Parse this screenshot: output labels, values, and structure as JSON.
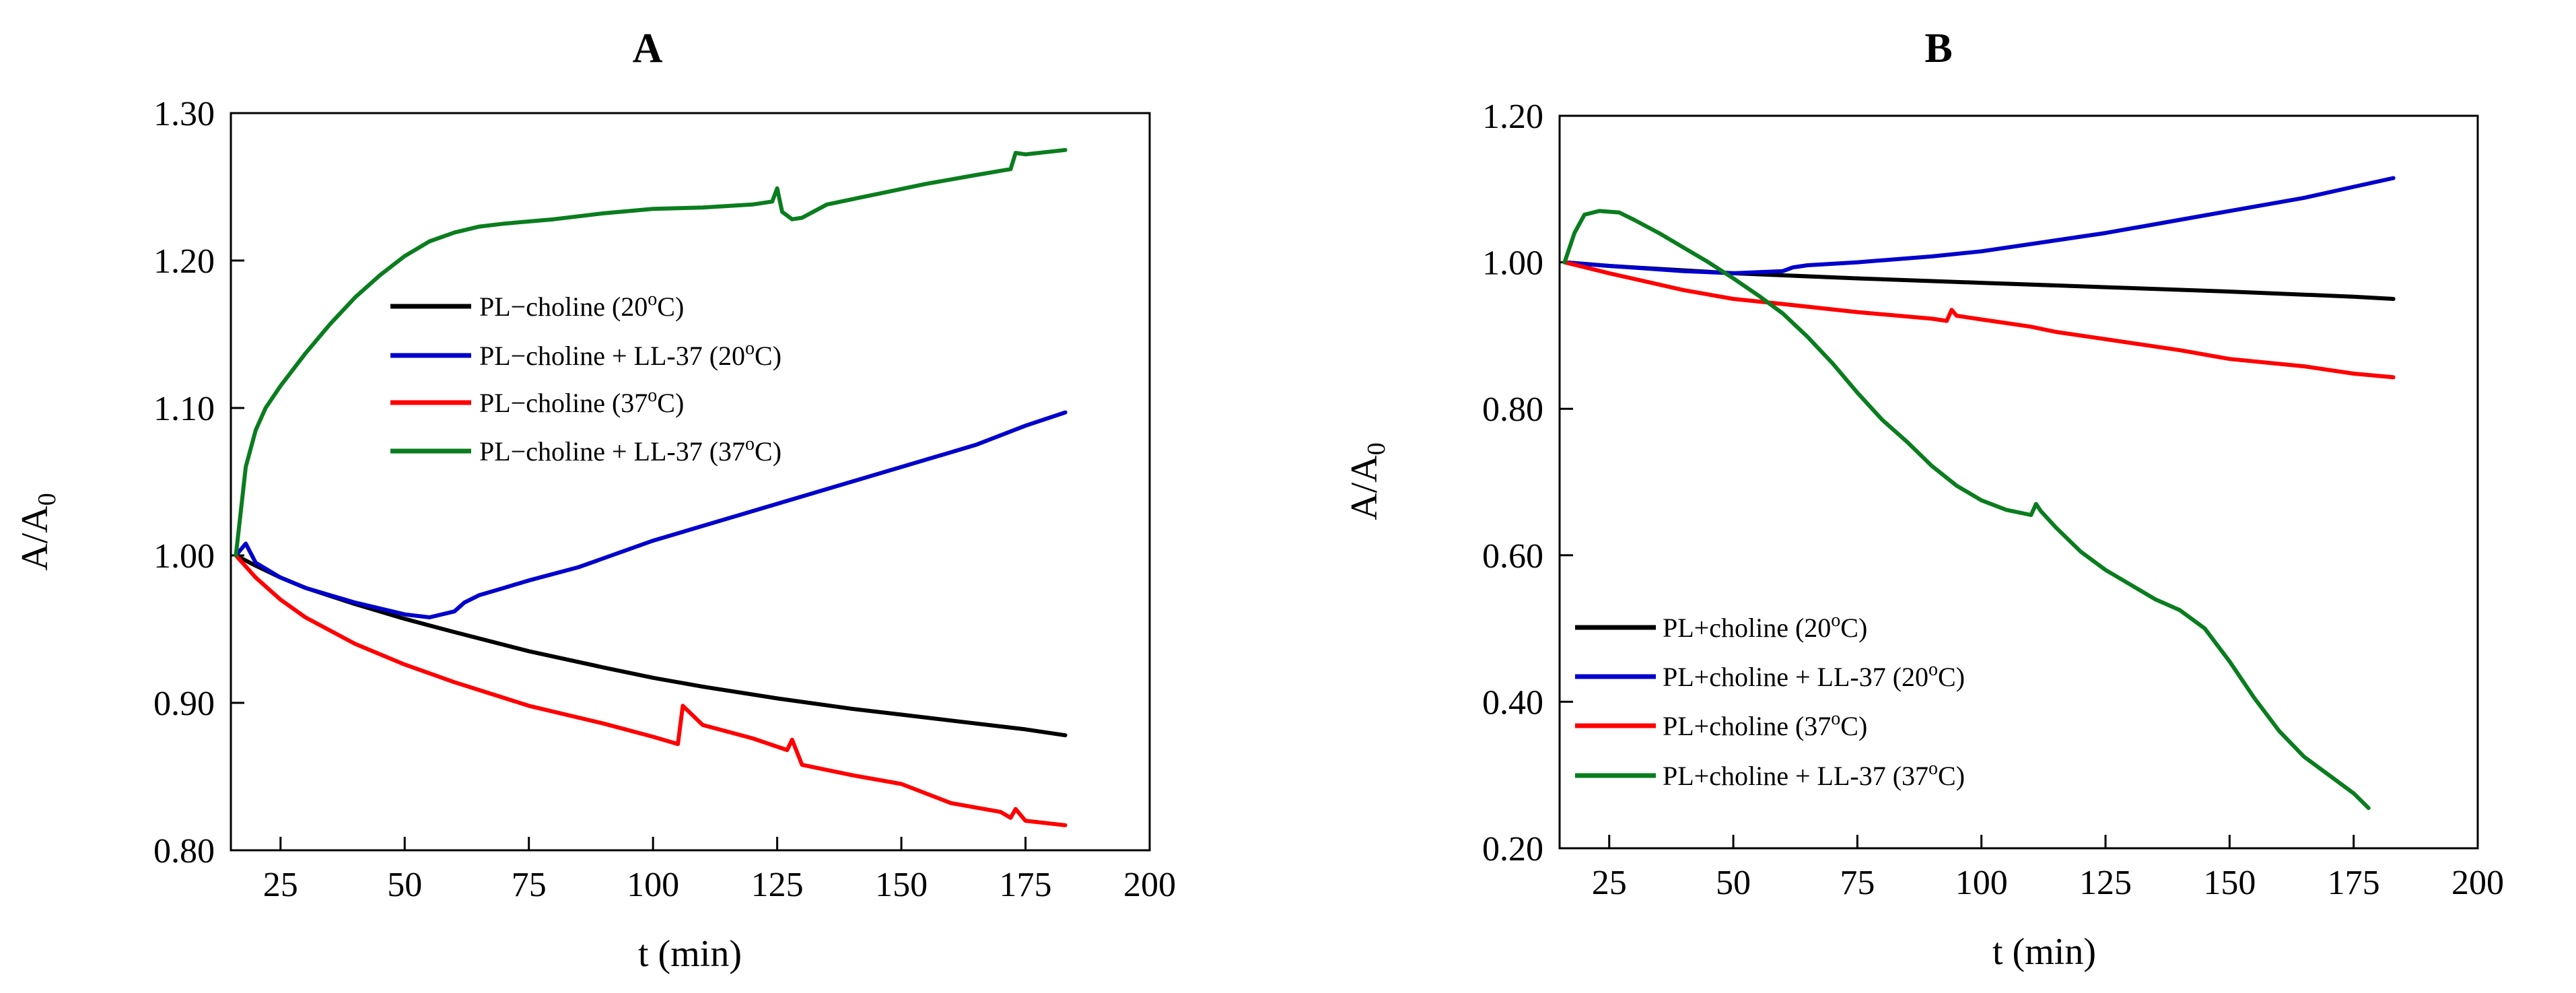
{
  "chart_data": [
    {
      "type": "line",
      "panel_label": "A",
      "xlabel": "t (min)",
      "ylabel": "A/A",
      "ylabel_sub": "0",
      "xlim": [
        15,
        200
      ],
      "ylim": [
        0.8,
        1.3
      ],
      "xticks": [
        25,
        50,
        75,
        100,
        125,
        150,
        175,
        200
      ],
      "xtick_labels": [
        "25",
        "50",
        "75",
        "100",
        "125",
        "150",
        "175",
        "200"
      ],
      "yticks": [
        0.8,
        0.9,
        1.0,
        1.1,
        1.2,
        1.3
      ],
      "ytick_labels": [
        "0.80",
        "0.90",
        "1.00",
        "1.10",
        "1.20",
        "1.30"
      ],
      "legend_position": "center",
      "series": [
        {
          "name": "PL−choline (20°C)",
          "legend_pre": "PL−choline (20",
          "legend_sup": "o",
          "legend_post": "C)",
          "color": "#000000",
          "x": [
            16,
            20,
            25,
            30,
            40,
            50,
            60,
            75,
            90,
            100,
            110,
            125,
            140,
            150,
            160,
            175,
            183
          ],
          "y": [
            1.0,
            0.993,
            0.985,
            0.978,
            0.967,
            0.957,
            0.948,
            0.935,
            0.924,
            0.917,
            0.911,
            0.903,
            0.896,
            0.892,
            0.888,
            0.882,
            0.878
          ]
        },
        {
          "name": "PL−choline + LL-37 (20°C)",
          "legend_pre": "PL−choline + LL-37 (20",
          "legend_sup": "o",
          "legend_post": "C)",
          "color": "#0000cc",
          "x": [
            16,
            18,
            20,
            25,
            30,
            40,
            50,
            55,
            60,
            62,
            65,
            70,
            75,
            85,
            100,
            115,
            125,
            140,
            150,
            165,
            175,
            183
          ],
          "y": [
            1.0,
            1.008,
            0.995,
            0.985,
            0.978,
            0.968,
            0.96,
            0.958,
            0.962,
            0.968,
            0.973,
            0.978,
            0.983,
            0.992,
            1.01,
            1.025,
            1.035,
            1.05,
            1.06,
            1.075,
            1.088,
            1.097
          ]
        },
        {
          "name": "PL−choline (37°C)",
          "legend_pre": "PL−choline (37",
          "legend_sup": "o",
          "legend_post": "C)",
          "color": "#ff0000",
          "x": [
            16,
            20,
            25,
            30,
            40,
            50,
            60,
            75,
            90,
            100,
            105,
            106,
            110,
            120,
            127,
            128,
            130,
            140,
            150,
            160,
            170,
            172,
            173,
            175,
            183
          ],
          "y": [
            1.0,
            0.985,
            0.97,
            0.958,
            0.94,
            0.926,
            0.914,
            0.898,
            0.886,
            0.877,
            0.872,
            0.898,
            0.885,
            0.876,
            0.868,
            0.875,
            0.858,
            0.851,
            0.845,
            0.832,
            0.826,
            0.822,
            0.828,
            0.82,
            0.817
          ]
        },
        {
          "name": "PL−choline + LL-37 (37°C)",
          "legend_pre": "PL−choline + LL-37 (37",
          "legend_sup": "o",
          "legend_post": "C)",
          "color": "#0a7d1e",
          "x": [
            16,
            17,
            18,
            20,
            22,
            25,
            30,
            35,
            40,
            45,
            50,
            55,
            60,
            65,
            70,
            80,
            90,
            100,
            110,
            120,
            124,
            125,
            126,
            128,
            130,
            135,
            145,
            155,
            165,
            172,
            173,
            175,
            183
          ],
          "y": [
            1.0,
            1.03,
            1.06,
            1.085,
            1.1,
            1.115,
            1.137,
            1.157,
            1.175,
            1.19,
            1.203,
            1.213,
            1.219,
            1.223,
            1.225,
            1.228,
            1.232,
            1.235,
            1.236,
            1.238,
            1.24,
            1.249,
            1.233,
            1.228,
            1.229,
            1.238,
            1.245,
            1.252,
            1.258,
            1.262,
            1.273,
            1.272,
            1.275
          ]
        }
      ]
    },
    {
      "type": "line",
      "panel_label": "B",
      "xlabel": "t (min)",
      "ylabel": "A/A",
      "ylabel_sub": "0",
      "xlim": [
        15,
        200
      ],
      "ylim": [
        0.2,
        1.2
      ],
      "xticks": [
        25,
        50,
        75,
        100,
        125,
        150,
        175,
        200
      ],
      "xtick_labels": [
        "25",
        "50",
        "75",
        "100",
        "125",
        "150",
        "175",
        "200"
      ],
      "yticks": [
        0.2,
        0.4,
        0.6,
        0.8,
        1.0,
        1.2
      ],
      "ytick_labels": [
        "0.20",
        "0.40",
        "0.60",
        "0.80",
        "1.00",
        "1.20"
      ],
      "legend_position": "bottom-left",
      "series": [
        {
          "name": "PL+choline (20°C)",
          "legend_pre": "PL+choline (20",
          "legend_sup": "o",
          "legend_post": "C)",
          "color": "#000000",
          "x": [
            16,
            25,
            50,
            75,
            100,
            125,
            150,
            175,
            183
          ],
          "y": [
            1.0,
            0.995,
            0.985,
            0.978,
            0.972,
            0.966,
            0.96,
            0.953,
            0.95
          ]
        },
        {
          "name": "PL+choline + LL-37 (20°C)",
          "legend_pre": "PL+choline + LL-37 (20",
          "legend_sup": "o",
          "legend_post": "C)",
          "color": "#0000cc",
          "x": [
            16,
            25,
            40,
            50,
            60,
            62,
            65,
            75,
            90,
            100,
            115,
            125,
            140,
            150,
            165,
            175,
            183
          ],
          "y": [
            1.0,
            0.995,
            0.988,
            0.985,
            0.988,
            0.993,
            0.996,
            1.0,
            1.008,
            1.015,
            1.03,
            1.04,
            1.058,
            1.07,
            1.088,
            1.103,
            1.115
          ]
        },
        {
          "name": "PL+choline (37°C)",
          "legend_pre": "PL+choline (37",
          "legend_sup": "o",
          "legend_post": "C)",
          "color": "#ff0000",
          "x": [
            16,
            25,
            40,
            50,
            60,
            75,
            90,
            93,
            94,
            95,
            100,
            110,
            115,
            125,
            140,
            150,
            165,
            175,
            183
          ],
          "y": [
            1.0,
            0.985,
            0.962,
            0.95,
            0.943,
            0.932,
            0.923,
            0.92,
            0.935,
            0.927,
            0.922,
            0.912,
            0.905,
            0.895,
            0.88,
            0.868,
            0.858,
            0.848,
            0.843
          ]
        },
        {
          "name": "PL+choline + LL-37 (37°C)",
          "legend_pre": "PL+choline + LL-37 (37",
          "legend_sup": "o",
          "legend_post": "C)",
          "color": "#0a7d1e",
          "x": [
            16,
            18,
            20,
            23,
            27,
            30,
            35,
            40,
            45,
            50,
            55,
            60,
            65,
            70,
            75,
            80,
            85,
            90,
            95,
            100,
            105,
            110,
            111,
            112,
            115,
            120,
            125,
            130,
            135,
            140,
            145,
            150,
            155,
            160,
            165,
            170,
            175,
            178
          ],
          "y": [
            1.0,
            1.04,
            1.065,
            1.07,
            1.068,
            1.058,
            1.04,
            1.02,
            1.0,
            0.978,
            0.955,
            0.93,
            0.898,
            0.862,
            0.822,
            0.785,
            0.755,
            0.722,
            0.695,
            0.675,
            0.662,
            0.655,
            0.67,
            0.66,
            0.638,
            0.605,
            0.58,
            0.56,
            0.54,
            0.525,
            0.5,
            0.455,
            0.405,
            0.36,
            0.325,
            0.3,
            0.275,
            0.255
          ]
        }
      ]
    }
  ]
}
